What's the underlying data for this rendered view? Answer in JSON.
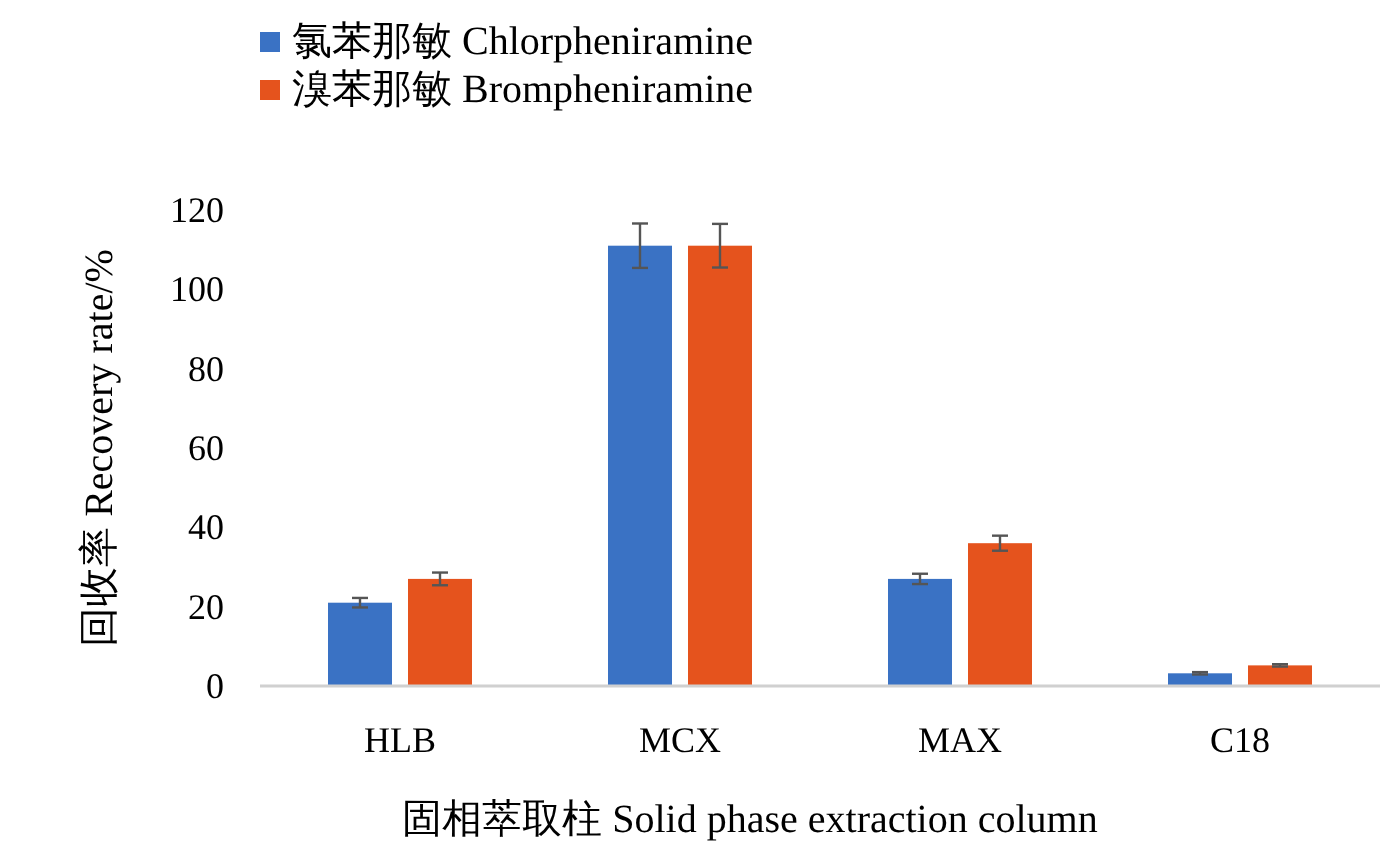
{
  "chart_data": {
    "type": "bar",
    "xlabel": "固相萃取柱  Solid phase extraction column",
    "ylabel": "回收率  Recovery rate/%",
    "categories": [
      "HLB",
      "MCX",
      "MAX",
      "C18"
    ],
    "series": [
      {
        "name": "氯苯那敏  Chlorpheniramine",
        "color": "#3a72c4",
        "values": [
          21,
          111,
          27,
          3.2
        ],
        "errors": [
          1.2,
          5.6,
          1.3,
          0.3
        ]
      },
      {
        "name": "溴苯那敏  Brompheniramine",
        "color": "#e5531d",
        "values": [
          27,
          111,
          36,
          5.2
        ],
        "errors": [
          1.6,
          5.5,
          1.9,
          0.3
        ]
      }
    ],
    "ylim": [
      0,
      120
    ],
    "yticks": [
      0,
      20,
      40,
      60,
      80,
      100,
      120
    ],
    "grid": false,
    "legend": "top left"
  }
}
